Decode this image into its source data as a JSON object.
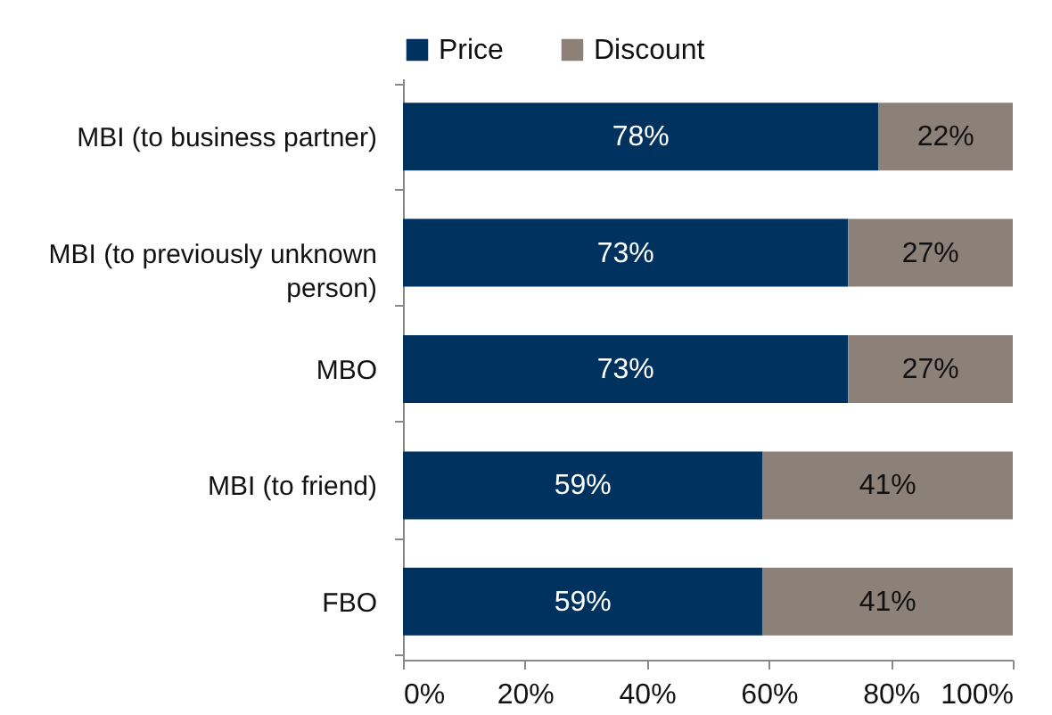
{
  "chart_data": {
    "type": "bar",
    "orientation": "horizontal",
    "stacked": true,
    "legend": "top",
    "categories": [
      "MBI (to business partner)",
      "MBI (to previously unknown person)",
      "MBO",
      "MBI (to friend)",
      "FBO"
    ],
    "series": [
      {
        "name": "Price",
        "color": "#00325f",
        "values": [
          78,
          73,
          73,
          59,
          59
        ],
        "value_labels": [
          "78%",
          "73%",
          "73%",
          "59%",
          "59%"
        ]
      },
      {
        "name": "Discount",
        "color": "#8c8178",
        "values": [
          22,
          27,
          27,
          41,
          41
        ],
        "value_labels": [
          "22%",
          "27%",
          "27%",
          "41%",
          "41%"
        ]
      }
    ],
    "xlim": [
      0,
      100
    ],
    "xticks": [
      {
        "value": 0,
        "label": "0%"
      },
      {
        "value": 20,
        "label": "20%"
      },
      {
        "value": 40,
        "label": "40%"
      },
      {
        "value": 60,
        "label": "60%"
      },
      {
        "value": 80,
        "label": "80%"
      },
      {
        "value": 100,
        "label": "100%"
      }
    ]
  }
}
